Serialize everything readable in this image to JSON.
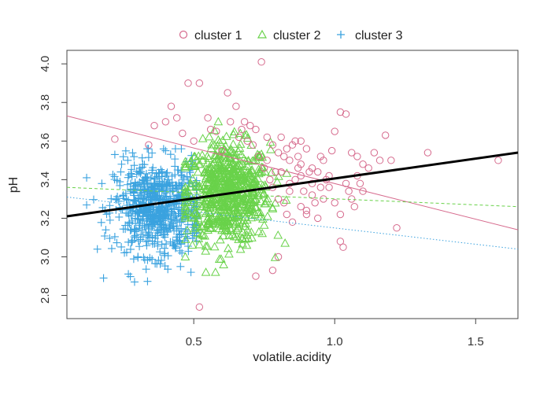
{
  "chart_data": {
    "type": "scatter",
    "xlabel": "volatile.acidity",
    "ylabel": "pH",
    "xlim": [
      0.05,
      1.65
    ],
    "ylim": [
      2.68,
      4.07
    ],
    "x_ticks": [
      "0.5",
      "1.0",
      "1.5"
    ],
    "x_tick_values": [
      0.5,
      1.0,
      1.5
    ],
    "y_ticks": [
      "2.8",
      "3.0",
      "3.2",
      "3.4",
      "3.6",
      "3.8",
      "4.0"
    ],
    "y_tick_values": [
      2.8,
      3.0,
      3.2,
      3.4,
      3.6,
      3.8,
      4.0
    ],
    "legend_position": "top",
    "series": [
      {
        "name": "cluster 1",
        "marker": "circle",
        "color": "#d66a8d",
        "fit_line": {
          "style": "solid",
          "x": [
            0.05,
            1.65
          ],
          "y": [
            3.73,
            3.14
          ]
        },
        "points": [
          [
            0.42,
            3.78
          ],
          [
            0.44,
            3.72
          ],
          [
            0.48,
            3.9
          ],
          [
            0.52,
            3.9
          ],
          [
            0.55,
            3.72
          ],
          [
            0.58,
            3.65
          ],
          [
            0.62,
            3.85
          ],
          [
            0.65,
            3.78
          ],
          [
            0.68,
            3.7
          ],
          [
            0.7,
            3.68
          ],
          [
            0.72,
            3.66
          ],
          [
            0.74,
            4.01
          ],
          [
            0.76,
            3.62
          ],
          [
            0.78,
            3.58
          ],
          [
            0.8,
            3.54
          ],
          [
            0.82,
            3.52
          ],
          [
            0.84,
            3.5
          ],
          [
            0.86,
            3.6
          ],
          [
            0.88,
            3.48
          ],
          [
            0.9,
            3.56
          ],
          [
            0.92,
            3.46
          ],
          [
            0.94,
            3.44
          ],
          [
            0.96,
            3.5
          ],
          [
            0.98,
            3.42
          ],
          [
            1.0,
            3.65
          ],
          [
            1.02,
            3.75
          ],
          [
            1.04,
            3.74
          ],
          [
            1.06,
            3.54
          ],
          [
            1.08,
            3.52
          ],
          [
            1.1,
            3.48
          ],
          [
            1.12,
            3.46
          ],
          [
            1.14,
            3.54
          ],
          [
            1.16,
            3.5
          ],
          [
            1.18,
            3.63
          ],
          [
            1.2,
            3.5
          ],
          [
            1.22,
            3.15
          ],
          [
            1.33,
            3.54
          ],
          [
            1.58,
            3.5
          ],
          [
            0.78,
            3.36
          ],
          [
            0.8,
            3.3
          ],
          [
            0.82,
            3.28
          ],
          [
            0.84,
            3.34
          ],
          [
            0.86,
            3.4
          ],
          [
            0.88,
            3.26
          ],
          [
            0.9,
            3.24
          ],
          [
            0.92,
            3.32
          ],
          [
            0.94,
            3.2
          ],
          [
            0.96,
            3.3
          ],
          [
            0.98,
            3.36
          ],
          [
            1.0,
            3.28
          ],
          [
            1.02,
            3.22
          ],
          [
            1.04,
            3.38
          ],
          [
            1.06,
            3.3
          ],
          [
            1.08,
            3.42
          ],
          [
            1.1,
            3.34
          ],
          [
            1.02,
            3.08
          ],
          [
            1.03,
            3.05
          ],
          [
            0.8,
            3.0
          ],
          [
            0.78,
            2.93
          ],
          [
            0.72,
            2.9
          ],
          [
            0.52,
            2.74
          ],
          [
            0.85,
            3.58
          ],
          [
            0.88,
            3.6
          ],
          [
            0.92,
            3.38
          ],
          [
            0.95,
            3.52
          ],
          [
            0.81,
            3.44
          ],
          [
            0.83,
            3.56
          ],
          [
            0.87,
            3.46
          ],
          [
            0.97,
            3.4
          ],
          [
            0.99,
            3.55
          ],
          [
            0.76,
            3.5
          ],
          [
            0.79,
            3.44
          ],
          [
            0.73,
            3.52
          ],
          [
            0.71,
            3.58
          ],
          [
            0.66,
            3.62
          ],
          [
            0.6,
            3.55
          ],
          [
            0.56,
            3.66
          ],
          [
            0.5,
            3.6
          ],
          [
            0.46,
            3.64
          ],
          [
            0.4,
            3.7
          ],
          [
            0.36,
            3.68
          ],
          [
            0.22,
            3.61
          ],
          [
            0.34,
            3.58
          ],
          [
            0.63,
            3.7
          ],
          [
            0.67,
            3.66
          ],
          [
            0.69,
            3.6
          ],
          [
            0.75,
            3.46
          ],
          [
            0.77,
            3.4
          ],
          [
            0.83,
            3.22
          ],
          [
            0.85,
            3.18
          ],
          [
            0.89,
            3.34
          ],
          [
            0.93,
            3.28
          ],
          [
            0.91,
            3.44
          ],
          [
            0.87,
            3.52
          ],
          [
            0.95,
            3.36
          ],
          [
            1.05,
            3.34
          ],
          [
            1.07,
            3.26
          ],
          [
            1.09,
            3.38
          ],
          [
            0.81,
            3.62
          ],
          [
            0.84,
            3.38
          ],
          [
            0.88,
            3.42
          ],
          [
            0.9,
            3.22
          ]
        ]
      },
      {
        "name": "cluster 2",
        "marker": "triangle",
        "color": "#69d24a",
        "fit_line": {
          "style": "dashed",
          "x": [
            0.05,
            1.65
          ],
          "y": [
            3.36,
            3.26
          ]
        },
        "points": []
      },
      {
        "name": "cluster 3",
        "marker": "plus",
        "color": "#3aa2df",
        "fit_line": {
          "style": "dotted",
          "x": [
            0.05,
            1.65
          ],
          "y": [
            3.31,
            3.04
          ]
        },
        "points": []
      }
    ],
    "overall_fit_line": {
      "color": "#000000",
      "x": [
        0.05,
        1.65
      ],
      "y": [
        3.21,
        3.54
      ]
    }
  }
}
